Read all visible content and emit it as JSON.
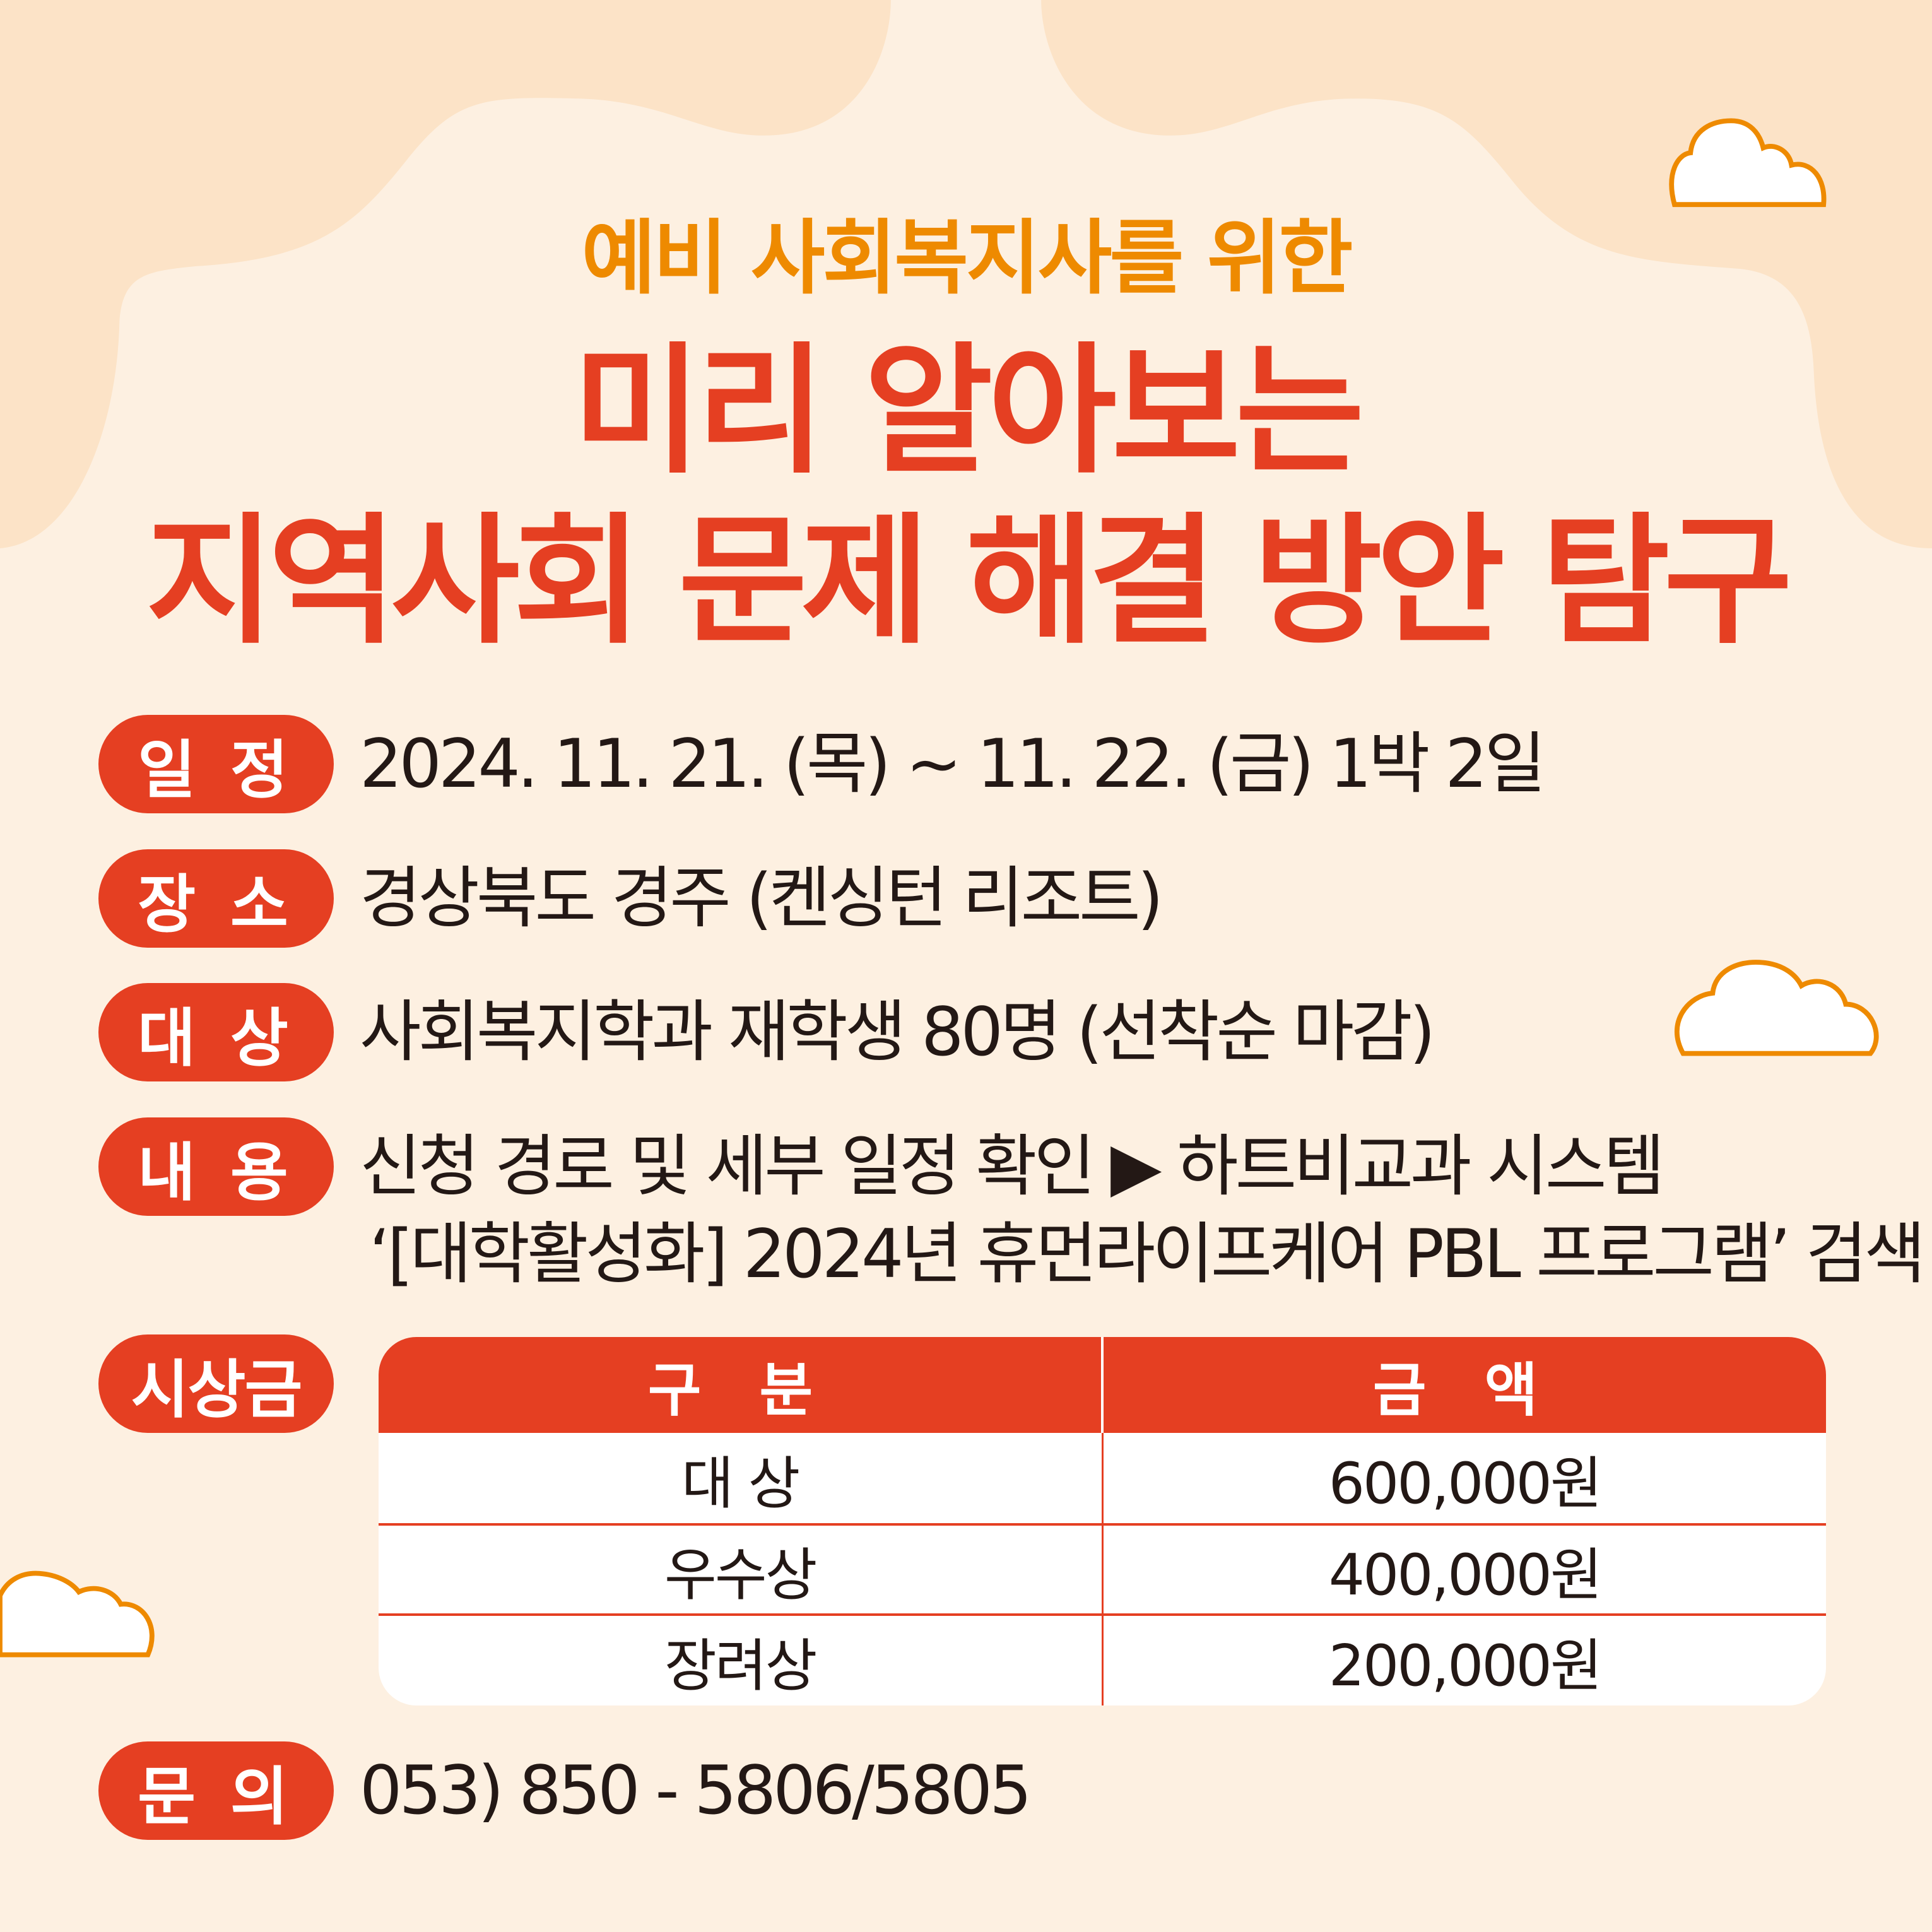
{
  "colors": {
    "background_light": "#FDF0E1",
    "background_dark": "#FCE3C7",
    "accent_red": "#E53F22",
    "accent_orange": "#EE8A00",
    "text_dark": "#231815"
  },
  "header": {
    "subtitle": "예비 사회복지사를 위한",
    "title_line1": "미리 알아보는",
    "title_line2": "지역사회 문제 해결 방안 탐구"
  },
  "info": [
    {
      "label": "일 정",
      "value": "2024. 11. 21. (목) ~ 11. 22. (금) 1박 2일"
    },
    {
      "label": "장 소",
      "value": "경상북도 경주 (켄싱턴 리조트)"
    },
    {
      "label": "대 상",
      "value": "사회복지학과 재학생 80명 (선착순 마감)"
    },
    {
      "label": "내 용",
      "value": "신청 경로 및 세부 일정 확인 ▶ 하트비교과 시스템",
      "value_line2": "‘[대학활성화] 2024년 휴먼라이프케어 PBL 프로그램’ 검색"
    }
  ],
  "prize": {
    "label": "시상금",
    "headers": [
      "구 분",
      "금 액"
    ],
    "rows": [
      {
        "category": "대 상",
        "amount": "600,000원"
      },
      {
        "category": "우수상",
        "amount": "400,000원"
      },
      {
        "category": "장려상",
        "amount": "200,000원"
      }
    ]
  },
  "contact": {
    "label": "문 의",
    "value": "053) 850 - 5806/5805"
  },
  "icons": [
    "cloud-icon",
    "cloud-icon",
    "cloud-icon"
  ]
}
